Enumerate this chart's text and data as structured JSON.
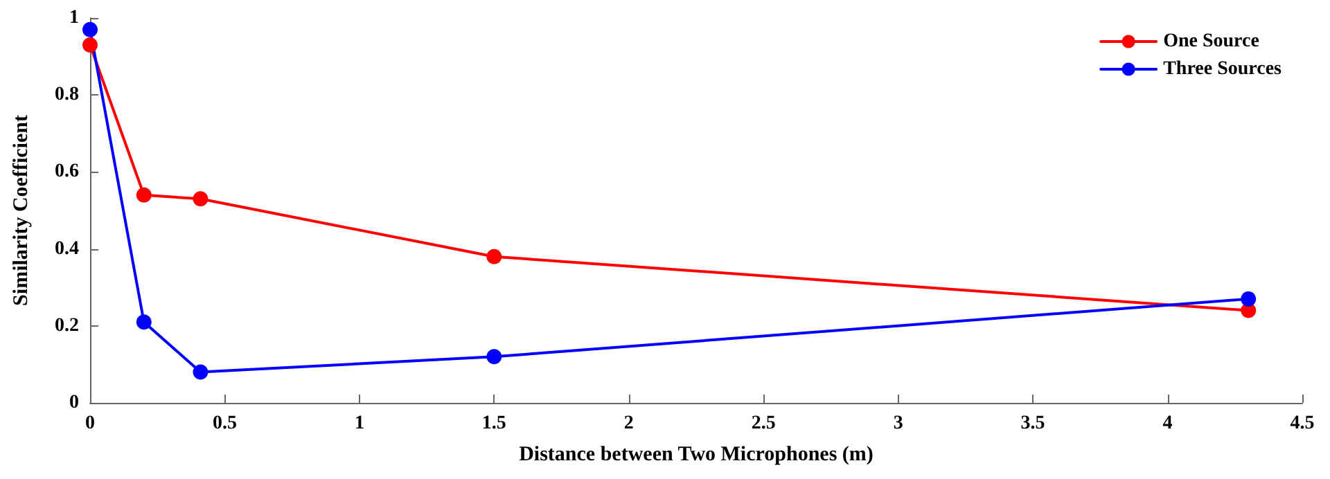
{
  "chart_data": {
    "type": "line",
    "xlabel": "Distance between Two Microphones (m)",
    "ylabel": "Similarity Coefficient",
    "series": [
      {
        "name": "One Source",
        "color": "#ff0000",
        "x": [
          0,
          0.2,
          0.41,
          1.5,
          4.3
        ],
        "values": [
          0.93,
          0.54,
          0.53,
          0.38,
          0.24
        ]
      },
      {
        "name": "Three Sources",
        "color": "#0000ff",
        "x": [
          0,
          0.2,
          0.41,
          1.5,
          4.3
        ],
        "values": [
          0.97,
          0.21,
          0.08,
          0.12,
          0.27
        ]
      }
    ],
    "xlim": [
      0,
      4.5
    ],
    "xticks": [
      0,
      0.5,
      1,
      1.5,
      2,
      2.5,
      3,
      3.5,
      4,
      4.5
    ],
    "ylim": [
      0,
      1
    ],
    "yticks": [
      0,
      0.2,
      0.4,
      0.6,
      0.8,
      1
    ],
    "legend": "top right",
    "marker": "circle",
    "line_style": "solid",
    "grid": false
  }
}
